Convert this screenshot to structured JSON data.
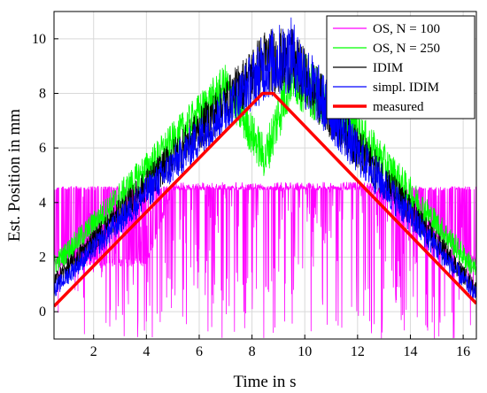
{
  "chart_data": {
    "type": "line",
    "xlabel": "Time in s",
    "ylabel": "Est. Position in mm",
    "xlim": [
      0.5,
      16.5
    ],
    "ylim": [
      -1,
      11
    ],
    "xticks": [
      2,
      4,
      6,
      8,
      10,
      12,
      14,
      16
    ],
    "yticks": [
      0,
      2,
      4,
      6,
      8,
      10
    ],
    "grid": true,
    "legend_position": "top-right",
    "series": [
      {
        "name": "OS, N = 100",
        "color": "#ff00ff",
        "style": "noisy band",
        "x": [
          0.5,
          1.0,
          4.0,
          5.0,
          12.5,
          16.5
        ],
        "y_upper": [
          4.6,
          4.6,
          4.6,
          4.6,
          4.6,
          4.6
        ],
        "y_center": [
          1.8,
          1.8,
          1.8,
          4.6,
          4.6,
          1.8
        ],
        "y_lower": [
          -1.0,
          -1.0,
          -1.0,
          -1.0,
          -1.0,
          -1.0
        ]
      },
      {
        "name": "OS, N = 250",
        "color": "#00ff00",
        "style": "noisy band",
        "x": [
          0.5,
          7.0,
          8.5,
          9.5,
          12.0,
          16.5
        ],
        "y_center": [
          1.7,
          8.3,
          5.6,
          8.8,
          6.6,
          1.5
        ],
        "spread": [
          0.4,
          0.8,
          0.8,
          1.2,
          0.8,
          0.4
        ]
      },
      {
        "name": "IDIM",
        "color": "#000000",
        "style": "noisy band",
        "x": [
          0.5,
          7.5,
          8.5,
          9.5,
          12.0,
          16.5
        ],
        "y_center": [
          1.1,
          8.2,
          9.2,
          9.2,
          6.0,
          0.8
        ],
        "spread": [
          0.3,
          0.9,
          1.2,
          1.2,
          0.8,
          0.3
        ]
      },
      {
        "name": "simpl. IDIM",
        "color": "#0000ff",
        "style": "noisy band",
        "x": [
          0.5,
          7.5,
          8.5,
          9.5,
          12.0,
          16.5
        ],
        "y_center": [
          0.8,
          7.9,
          9.0,
          9.4,
          5.8,
          0.6
        ],
        "spread": [
          0.3,
          0.9,
          1.3,
          1.4,
          0.8,
          0.3
        ]
      },
      {
        "name": "measured",
        "color": "#ff0000",
        "style": "thick line",
        "x": [
          0.5,
          8.4,
          8.8,
          16.5
        ],
        "y": [
          0.2,
          8.0,
          8.0,
          0.3
        ]
      }
    ]
  }
}
